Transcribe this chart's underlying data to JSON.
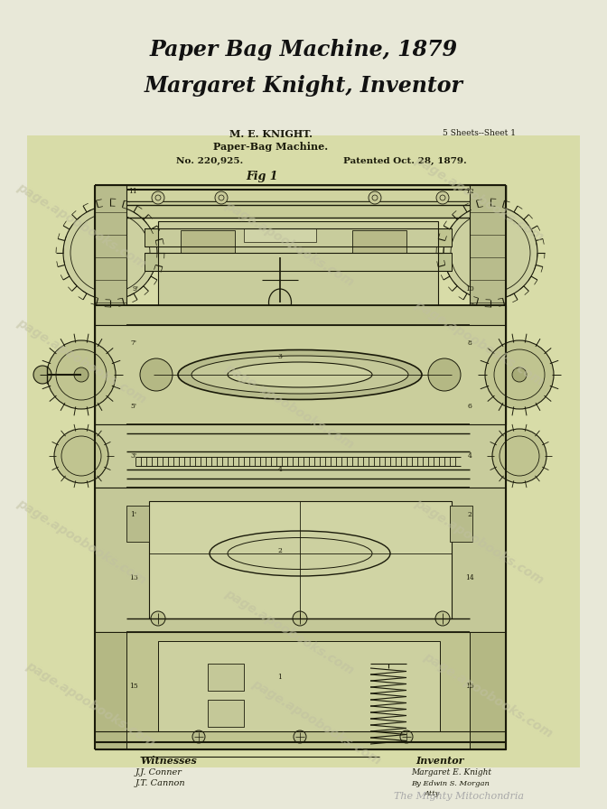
{
  "bg_color": "#d8dca8",
  "page_bg": "#e8e8d8",
  "title_line1": "Paper Bag Machine, 1879",
  "title_line2": "Margaret Knight, Inventor",
  "title_fontsize": 17,
  "patent_h1": "M. E. KNIGHT.",
  "patent_h2": "Paper-Bag Machine.",
  "patent_h3_left": "No. 220,925.",
  "patent_h3_right": "Patented Oct. 28, 1879.",
  "patent_sheets": "5 Sheets--Sheet 1",
  "patent_fig": "Fig 1",
  "witness_label": "Witnesses",
  "witness1": "J.J. Conner",
  "witness2": "J.T. Cannon",
  "inventor_label": "Inventor",
  "inventor1": "Margaret E. Knight",
  "inventor2": "By Edwin S. Morgan",
  "inventor3": "Atty",
  "bottom_text": "The Mighty Mitochondria",
  "watermark": "page.apoobooks.com",
  "diagram_line_color": "#1a1a0a",
  "title_color": "#111111",
  "wm_color": "#c0c0a0",
  "fig_width": 6.72,
  "fig_height": 8.96,
  "dpi": 100
}
